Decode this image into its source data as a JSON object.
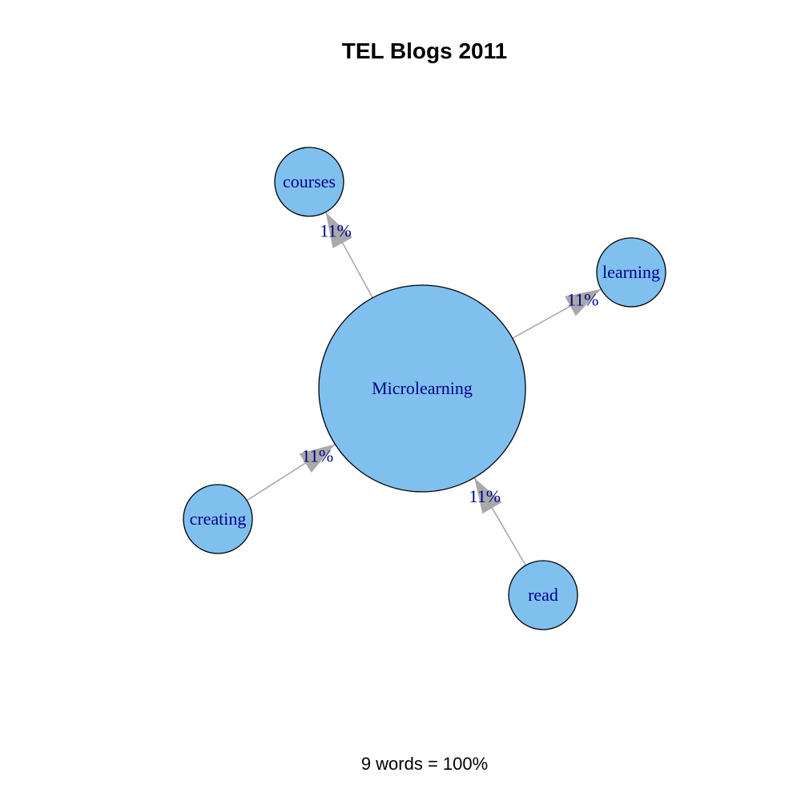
{
  "title": "TEL Blogs 2011",
  "footer": "9 words = 100%",
  "nodes": [
    {
      "id": "microlearning",
      "label": "Microlearning"
    },
    {
      "id": "courses",
      "label": "courses"
    },
    {
      "id": "learning",
      "label": "learning"
    },
    {
      "id": "creating",
      "label": "creating"
    },
    {
      "id": "read",
      "label": "read"
    }
  ],
  "edges": [
    {
      "from": "microlearning",
      "to": "courses",
      "label": "11%"
    },
    {
      "from": "microlearning",
      "to": "learning",
      "label": "11%"
    },
    {
      "from": "creating",
      "to": "microlearning",
      "label": "11%"
    },
    {
      "from": "read",
      "to": "microlearning",
      "label": "11%"
    }
  ],
  "colors": {
    "node_fill": "#80C0EF",
    "node_stroke": "#000000",
    "label_text": "#00008B",
    "edge": "#A9A9A9"
  }
}
